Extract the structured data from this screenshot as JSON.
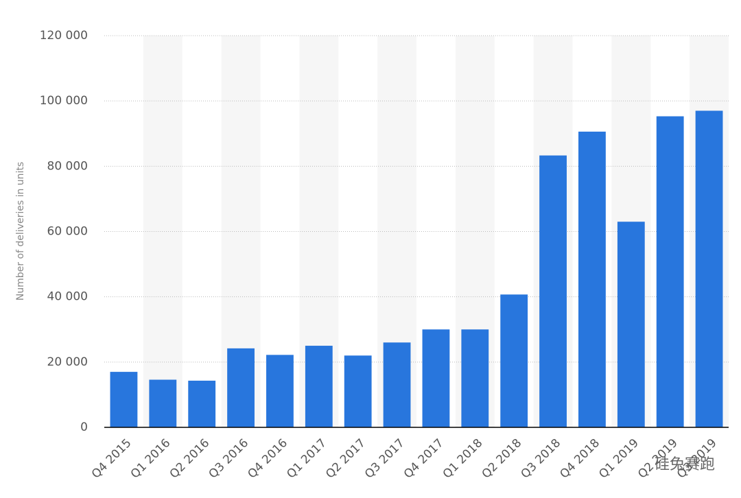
{
  "chart_data": {
    "type": "bar",
    "y_axis_label": "Number of deliveries in units",
    "categories": [
      "Q4 2015",
      "Q1 2016",
      "Q2 2016",
      "Q3 2016",
      "Q4 2016",
      "Q1 2017",
      "Q2 2017",
      "Q3 2017",
      "Q4 2017",
      "Q1 2018",
      "Q2 2018",
      "Q3 2018",
      "Q4 2018",
      "Q1 2019",
      "Q2 2019",
      "Q3 2019"
    ],
    "values": [
      17000,
      14600,
      14300,
      24200,
      22200,
      25000,
      22000,
      26000,
      30000,
      30000,
      40700,
      83300,
      90600,
      63000,
      95300,
      97000
    ],
    "color": "#2876dd",
    "ylim": [
      0,
      120000
    ],
    "yticks": [
      0,
      {
        "value": 20000,
        "label": "20 000"
      },
      {
        "value": 40000,
        "label": "40 000"
      },
      {
        "value": 60000,
        "label": "60 000"
      },
      {
        "value": 80000,
        "label": "80 000"
      },
      {
        "value": 100000,
        "label": "100 000"
      },
      {
        "value": 120000,
        "label": "120 000"
      }
    ],
    "grid": true,
    "watermark": "硅兔赛跑"
  }
}
